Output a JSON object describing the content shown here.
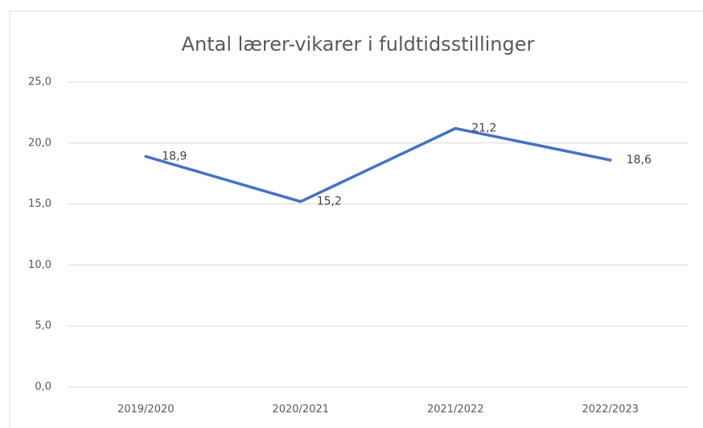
{
  "chart_data": {
    "type": "line",
    "title": "Antal lærer-vikarer i fuldtidsstillinger",
    "categories": [
      "2019/2020",
      "2020/2021",
      "2021/2022",
      "2022/2023"
    ],
    "values": [
      18.9,
      15.2,
      21.2,
      18.6
    ],
    "value_labels": [
      "18,9",
      "15,2",
      "21,2",
      "18,6"
    ],
    "color": "#4472c4",
    "ylim": [
      0,
      25
    ],
    "yticks": [
      {
        "value": 0,
        "label": "0,0"
      },
      {
        "value": 5,
        "label": "5,0"
      },
      {
        "value": 10,
        "label": "10,0"
      },
      {
        "value": 15,
        "label": "15,0"
      },
      {
        "value": 20,
        "label": "20,0"
      },
      {
        "value": 25,
        "label": "25,0"
      }
    ],
    "grid": true
  }
}
